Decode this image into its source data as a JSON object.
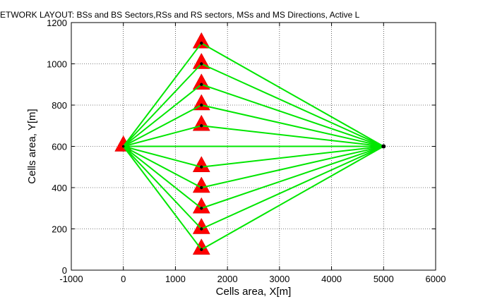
{
  "chart_data": {
    "type": "scatter",
    "title": "ETWORK LAYOUT: BSs and BS Sectors,RSs and RS sectors, MSs and MS Directions, Active L",
    "xlabel": "Cells area, X[m]",
    "ylabel": "Cells area, Y[m]",
    "xlim": [
      -1000,
      6000
    ],
    "ylim": [
      0,
      1200
    ],
    "xticks": [
      -1000,
      0,
      1000,
      2000,
      3000,
      4000,
      5000,
      6000
    ],
    "yticks": [
      0,
      200,
      400,
      600,
      800,
      1000,
      1200
    ],
    "xtick_labels": [
      "-1000",
      "0",
      "1000",
      "2000",
      "3000",
      "4000",
      "5000",
      "6000"
    ],
    "ytick_labels": [
      "0",
      "200",
      "400",
      "600",
      "800",
      "1000",
      "1200"
    ],
    "grid": true,
    "base_station": {
      "x": 0,
      "y": 600,
      "marker": "triangle"
    },
    "relay_stations": [
      {
        "x": 1500,
        "y": 100
      },
      {
        "x": 1500,
        "y": 200
      },
      {
        "x": 1500,
        "y": 300
      },
      {
        "x": 1500,
        "y": 400
      },
      {
        "x": 1500,
        "y": 500
      },
      {
        "x": 1500,
        "y": 700
      },
      {
        "x": 1500,
        "y": 800
      },
      {
        "x": 1500,
        "y": 900
      },
      {
        "x": 1500,
        "y": 1000
      },
      {
        "x": 1500,
        "y": 1100
      }
    ],
    "mobile_station": {
      "x": 5000,
      "y": 600
    },
    "links": {
      "bs_to_rs": true,
      "rs_to_ms": true,
      "bs_to_ms": true
    },
    "colors": {
      "triangle": "#ff0000",
      "link": "#00e600",
      "dot": "#000000",
      "grid": "#000000"
    }
  }
}
